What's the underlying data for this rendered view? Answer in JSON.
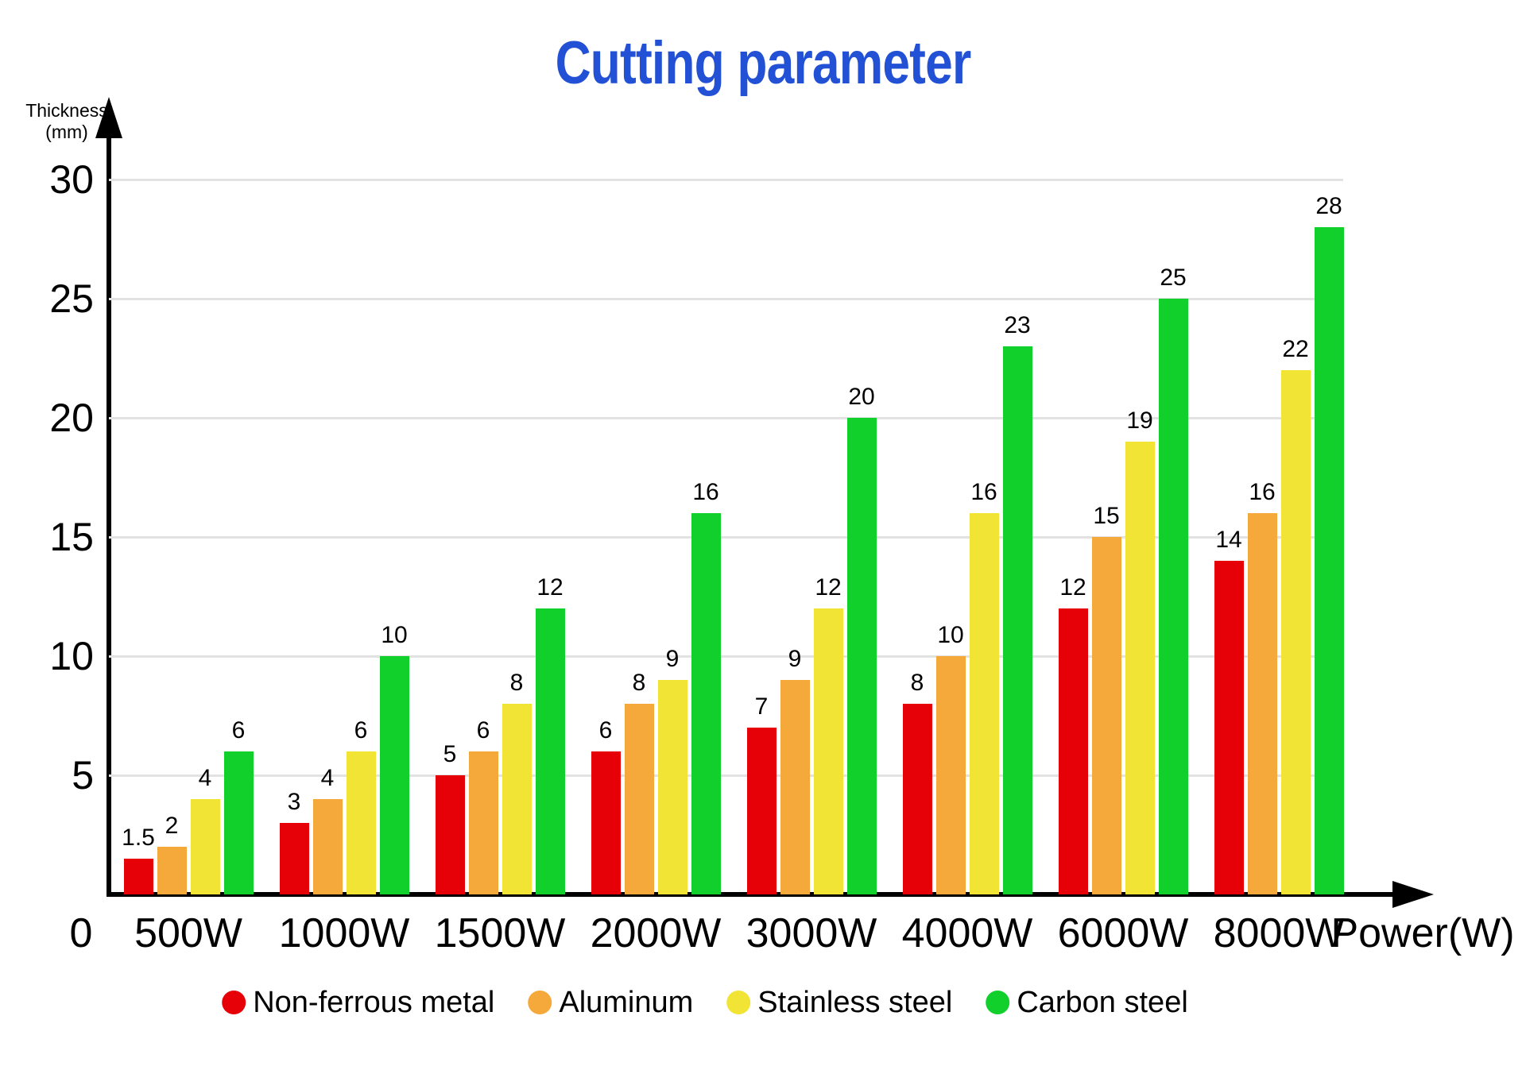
{
  "title": "Cutting parameter",
  "colors": {
    "title": "#2351d5",
    "axis": "#000000",
    "gridline": "#e2e2e2"
  },
  "y_axis": {
    "label_line1": "Thickness",
    "label_line2": "(mm)",
    "ticks": [
      "30",
      "25",
      "20",
      "15",
      "10",
      "5"
    ],
    "origin_label": "0"
  },
  "x_axis": {
    "label": "Power(W)"
  },
  "chart_data": {
    "type": "bar",
    "title": "Cutting parameter",
    "xlabel": "Power(W)",
    "ylabel": "Thickness (mm)",
    "ylim": [
      0,
      30
    ],
    "grid": true,
    "gridline_values": [
      5,
      10,
      15,
      20,
      25,
      30
    ],
    "legend_position": "bottom",
    "categories": [
      "500W",
      "1000W",
      "1500W",
      "2000W",
      "3000W",
      "4000W",
      "6000W",
      "8000W"
    ],
    "series": [
      {
        "name": "Non-ferrous metal",
        "color": "#e60008",
        "values": [
          1.5,
          3,
          5,
          6,
          7,
          8,
          12,
          14
        ]
      },
      {
        "name": "Aluminum",
        "color": "#f6a93b",
        "values": [
          2,
          4,
          6,
          8,
          9,
          10,
          15,
          16
        ]
      },
      {
        "name": "Stainless steel",
        "color": "#f2e434",
        "values": [
          4,
          6,
          8,
          9,
          12,
          16,
          19,
          22
        ]
      },
      {
        "name": "Carbon steel",
        "color": "#12d02c",
        "values": [
          6,
          10,
          12,
          16,
          20,
          23,
          25,
          28
        ]
      }
    ]
  }
}
